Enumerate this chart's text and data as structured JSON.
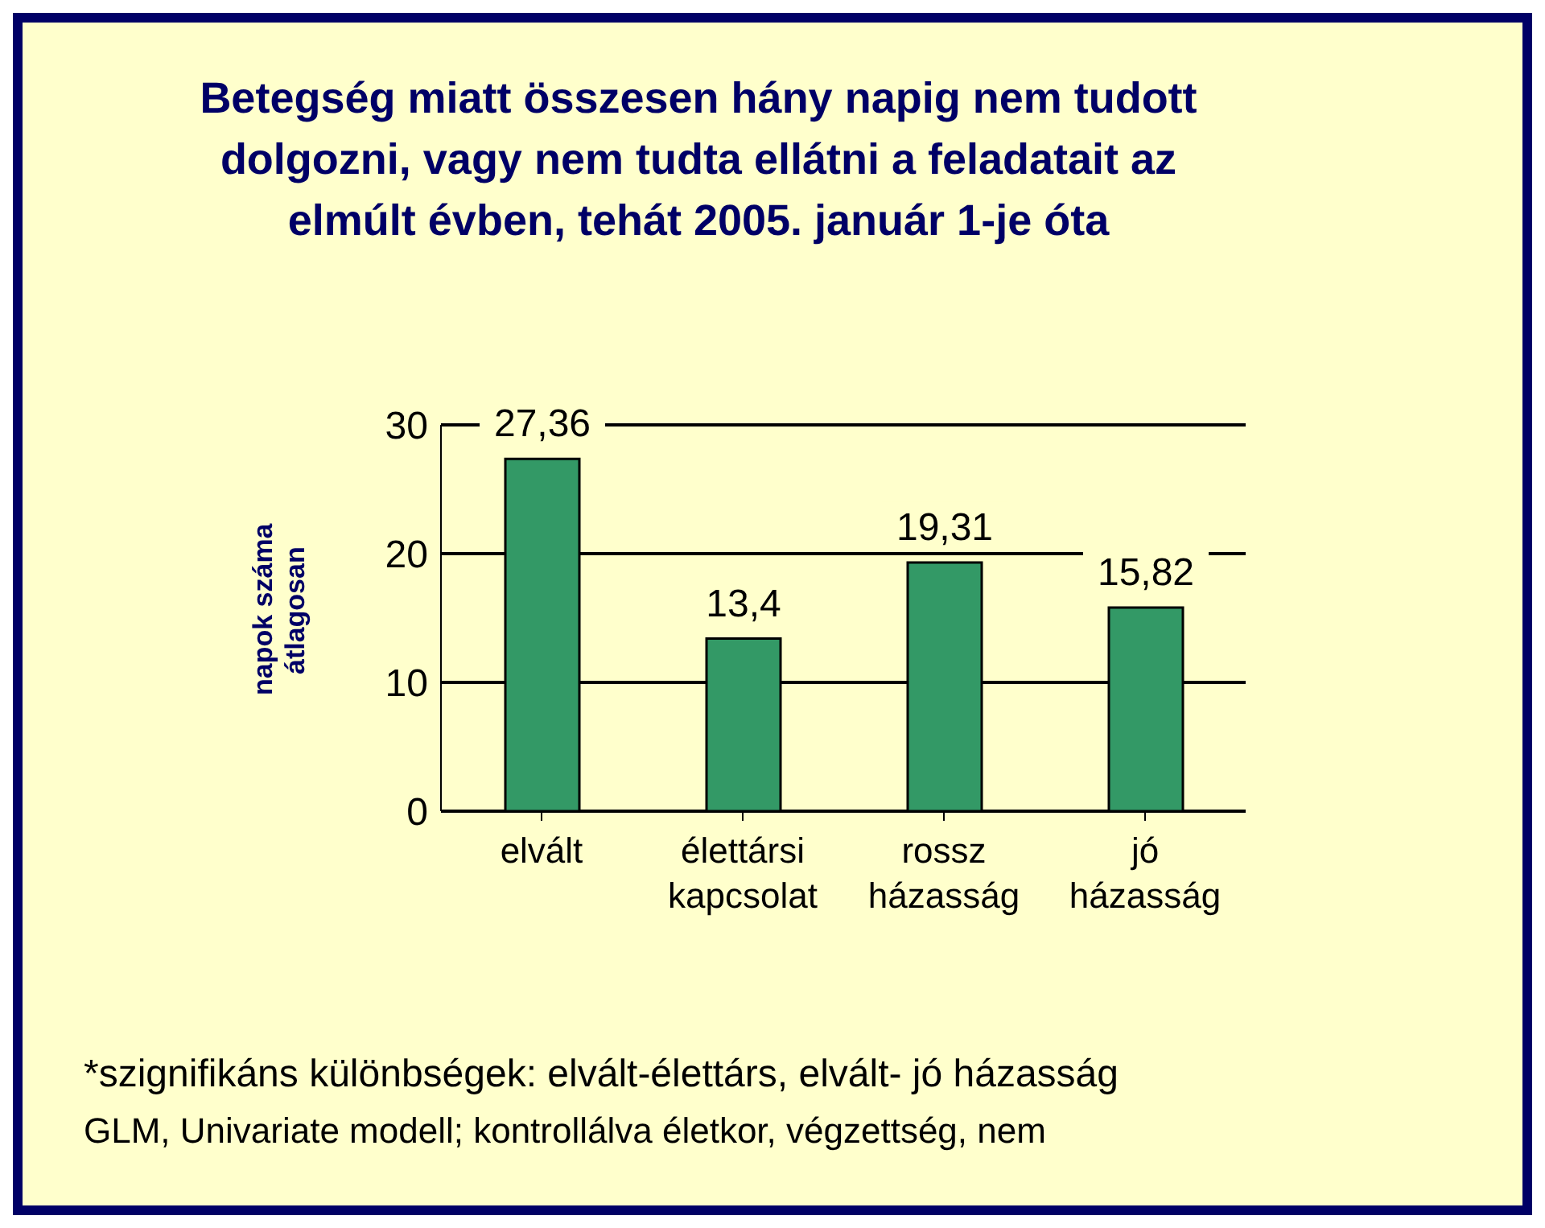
{
  "chart_data": {
    "type": "bar",
    "title": "Betegség miatt összesen hány napig nem tudott  dolgozni, vagy nem tudta ellátni a feladatait az elmúlt évben, tehát 2005. január 1-je óta",
    "ylabel": "napok száma átlagosan",
    "categories": [
      "elvált",
      "élettársi kapcsolat",
      "rossz házasság",
      "jó házasság"
    ],
    "values": [
      27.36,
      13.4,
      19.31,
      15.82
    ],
    "value_labels": [
      "27,36",
      "13,4",
      "19,31",
      "15,82"
    ],
    "color": "#339966",
    "ylim": [
      0,
      30
    ],
    "yticks": [
      0,
      10,
      20,
      30
    ],
    "grid": "y",
    "annotations": [
      "*szignifikáns különbségek: elvált-élettárs, elvált- jó házasság",
      "GLM, Univariate modell; kontrollálva életkor, végzettség, nem"
    ]
  }
}
